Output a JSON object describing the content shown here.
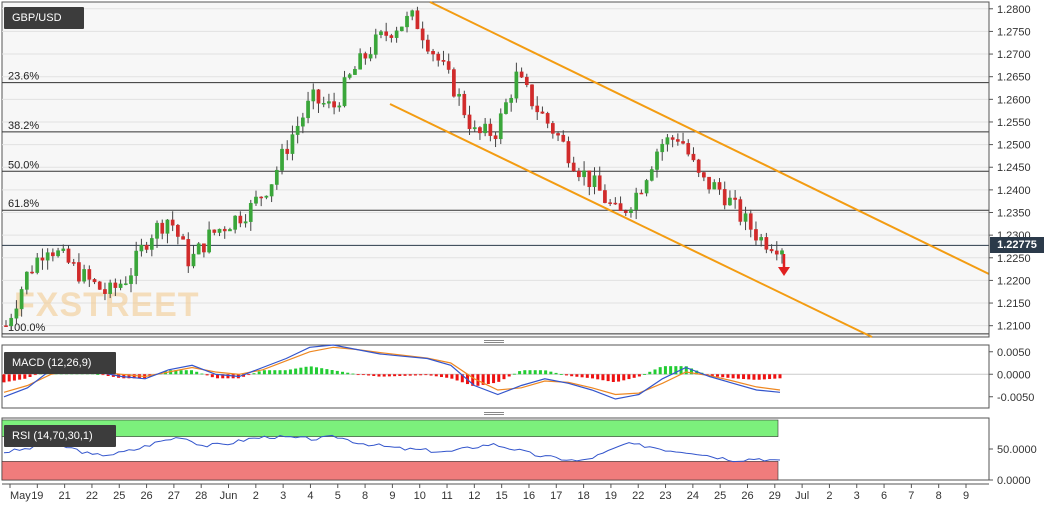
{
  "chart_data": [
    {
      "type": "candlestick",
      "title": "GBP/USD",
      "ylim": [
        1.2075,
        1.2815
      ],
      "y_ticks": [
        "1.2800",
        "1.2750",
        "1.2700",
        "1.2650",
        "1.2600",
        "1.2550",
        "1.2500",
        "1.2450",
        "1.2400",
        "1.2350",
        "1.2300",
        "1.2250",
        "1.2200",
        "1.2150",
        "1.2100"
      ],
      "last_price": "1.22775",
      "x_tick_labels": [
        "May",
        "19",
        "21",
        "22",
        "25",
        "26",
        "27",
        "28",
        "Jun",
        "2",
        "3",
        "4",
        "5",
        "8",
        "9",
        "10",
        "11",
        "12",
        "15",
        "16",
        "17",
        "18",
        "19",
        "22",
        "23",
        "24",
        "25",
        "26",
        "29",
        "Jul",
        "2",
        "3",
        "6",
        "7",
        "8",
        "9"
      ],
      "fib_levels": [
        {
          "label": "23.6%",
          "value": 1.2637
        },
        {
          "label": "38.2%",
          "value": 1.2528
        },
        {
          "label": "50.0%",
          "value": 1.2441
        },
        {
          "label": "61.8%",
          "value": 1.2355
        },
        {
          "label": "100.0%",
          "value": 1.2082
        }
      ],
      "close_path": [
        1.21,
        1.221,
        1.228,
        1.224,
        1.22,
        1.217,
        1.221,
        1.23,
        1.234,
        1.224,
        1.23,
        1.233,
        1.236,
        1.242,
        1.252,
        1.26,
        1.258,
        1.266,
        1.272,
        1.276,
        1.278,
        1.27,
        1.262,
        1.252,
        1.253,
        1.265,
        1.258,
        1.252,
        1.245,
        1.24,
        1.234,
        1.24,
        1.25,
        1.252,
        1.242,
        1.24,
        1.234,
        1.229,
        1.2277
      ],
      "channel_color": "#f39c12",
      "down_arrow_color": "#e02020"
    },
    {
      "type": "line",
      "title": "MACD (12,26,9)",
      "ylim": [
        -0.0075,
        0.0065
      ],
      "y_ticks": [
        "0.0050",
        "0.0000",
        "-0.0050"
      ],
      "macd": [
        -0.005,
        -0.003,
        0.001,
        0.0015,
        0.0005,
        -0.0005,
        -0.001,
        0.001,
        0.002,
        0.0,
        -0.0005,
        0.0015,
        0.0035,
        0.006,
        0.0065,
        0.0055,
        0.0045,
        0.004,
        0.0035,
        0.002,
        -0.0025,
        -0.0045,
        -0.0025,
        -0.001,
        -0.002,
        -0.0035,
        -0.0055,
        -0.0045,
        -0.001,
        0.0015,
        -0.0005,
        -0.002,
        -0.0035,
        -0.004
      ],
      "signal": [
        -0.004,
        -0.0025,
        0.0,
        0.001,
        0.0005,
        0.0,
        -0.0005,
        0.0005,
        0.0015,
        0.0005,
        0.0,
        0.001,
        0.003,
        0.005,
        0.006,
        0.0055,
        0.0048,
        0.0042,
        0.0036,
        0.0025,
        -0.001,
        -0.0035,
        -0.003,
        -0.0015,
        -0.0018,
        -0.003,
        -0.0045,
        -0.0042,
        -0.002,
        0.0005,
        -0.0003,
        -0.0015,
        -0.0028,
        -0.0035
      ],
      "hist_positive_color": "#22cc33",
      "hist_negative_color": "#ee1111",
      "macd_color": "#3355cc",
      "signal_color": "#ee8822"
    },
    {
      "type": "line",
      "title": "RSI (14,70,30,1)",
      "ylim": [
        0,
        100
      ],
      "y_ticks": [
        "50.0000",
        "0.0000"
      ],
      "overbought": 70,
      "oversold": 30,
      "rsi": [
        45,
        50,
        58,
        52,
        40,
        42,
        50,
        62,
        70,
        55,
        58,
        66,
        70,
        68,
        66,
        70,
        60,
        55,
        50,
        48,
        45,
        52,
        58,
        50,
        40,
        35,
        30,
        42,
        58,
        55,
        48,
        45,
        38,
        32,
        35,
        30
      ],
      "overbought_color": "#7cf07c",
      "oversold_color": "#f07c7c",
      "line_color": "#3355cc"
    }
  ],
  "watermark": "FXSTREET"
}
